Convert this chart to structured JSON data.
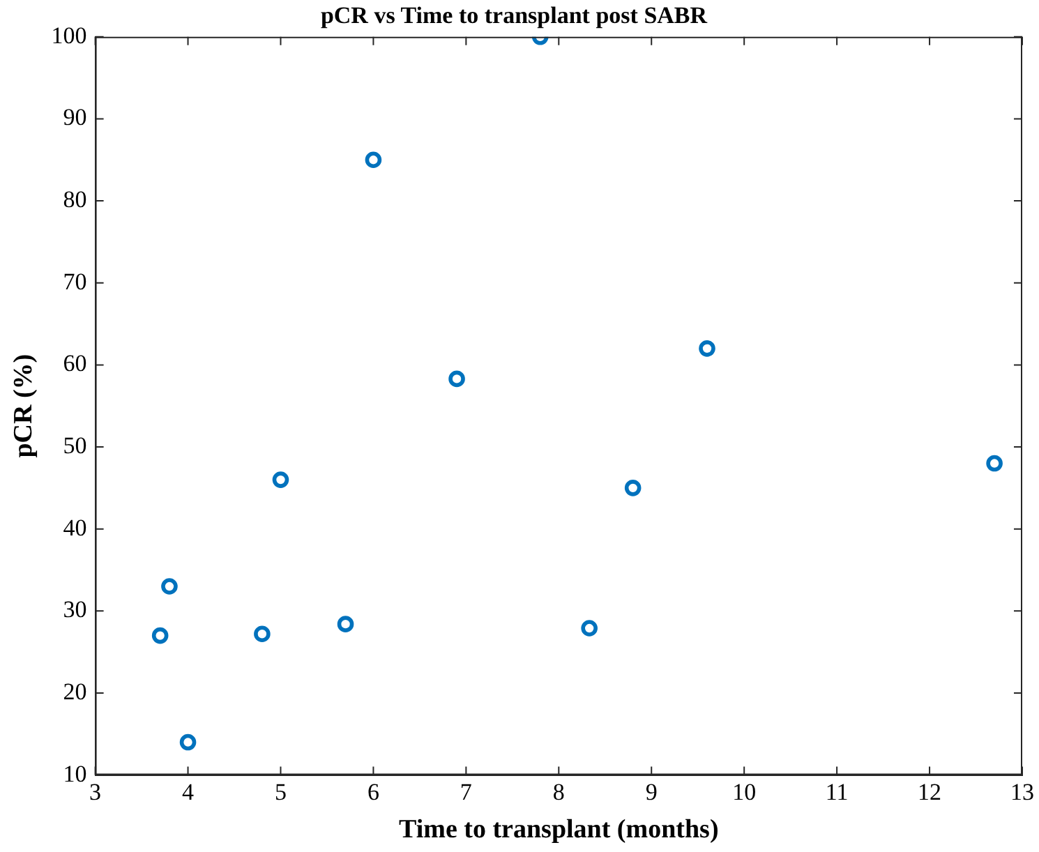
{
  "chart_data": {
    "type": "scatter",
    "title": "pCR vs Time to transplant post SABR",
    "xlabel": "Time to transplant (months)",
    "ylabel": "pCR (%)",
    "x": [
      3.7,
      3.8,
      4.0,
      4.8,
      5.0,
      5.7,
      6.0,
      6.9,
      7.8,
      8.33,
      8.8,
      9.6,
      12.7
    ],
    "series": [
      {
        "color": "#0072bd",
        "values": [
          27,
          33,
          14,
          27.2,
          46,
          28.4,
          85,
          58.3,
          100,
          27.9,
          45,
          62,
          48
        ]
      }
    ],
    "xlim": [
      3,
      13
    ],
    "xticks": [
      3,
      4,
      5,
      6,
      7,
      8,
      9,
      10,
      11,
      12,
      13
    ],
    "ylim": [
      10,
      100
    ],
    "yticks": [
      10,
      20,
      30,
      40,
      50,
      60,
      70,
      80,
      90,
      100
    ],
    "marker": "circle",
    "grid": false,
    "legend": false
  }
}
